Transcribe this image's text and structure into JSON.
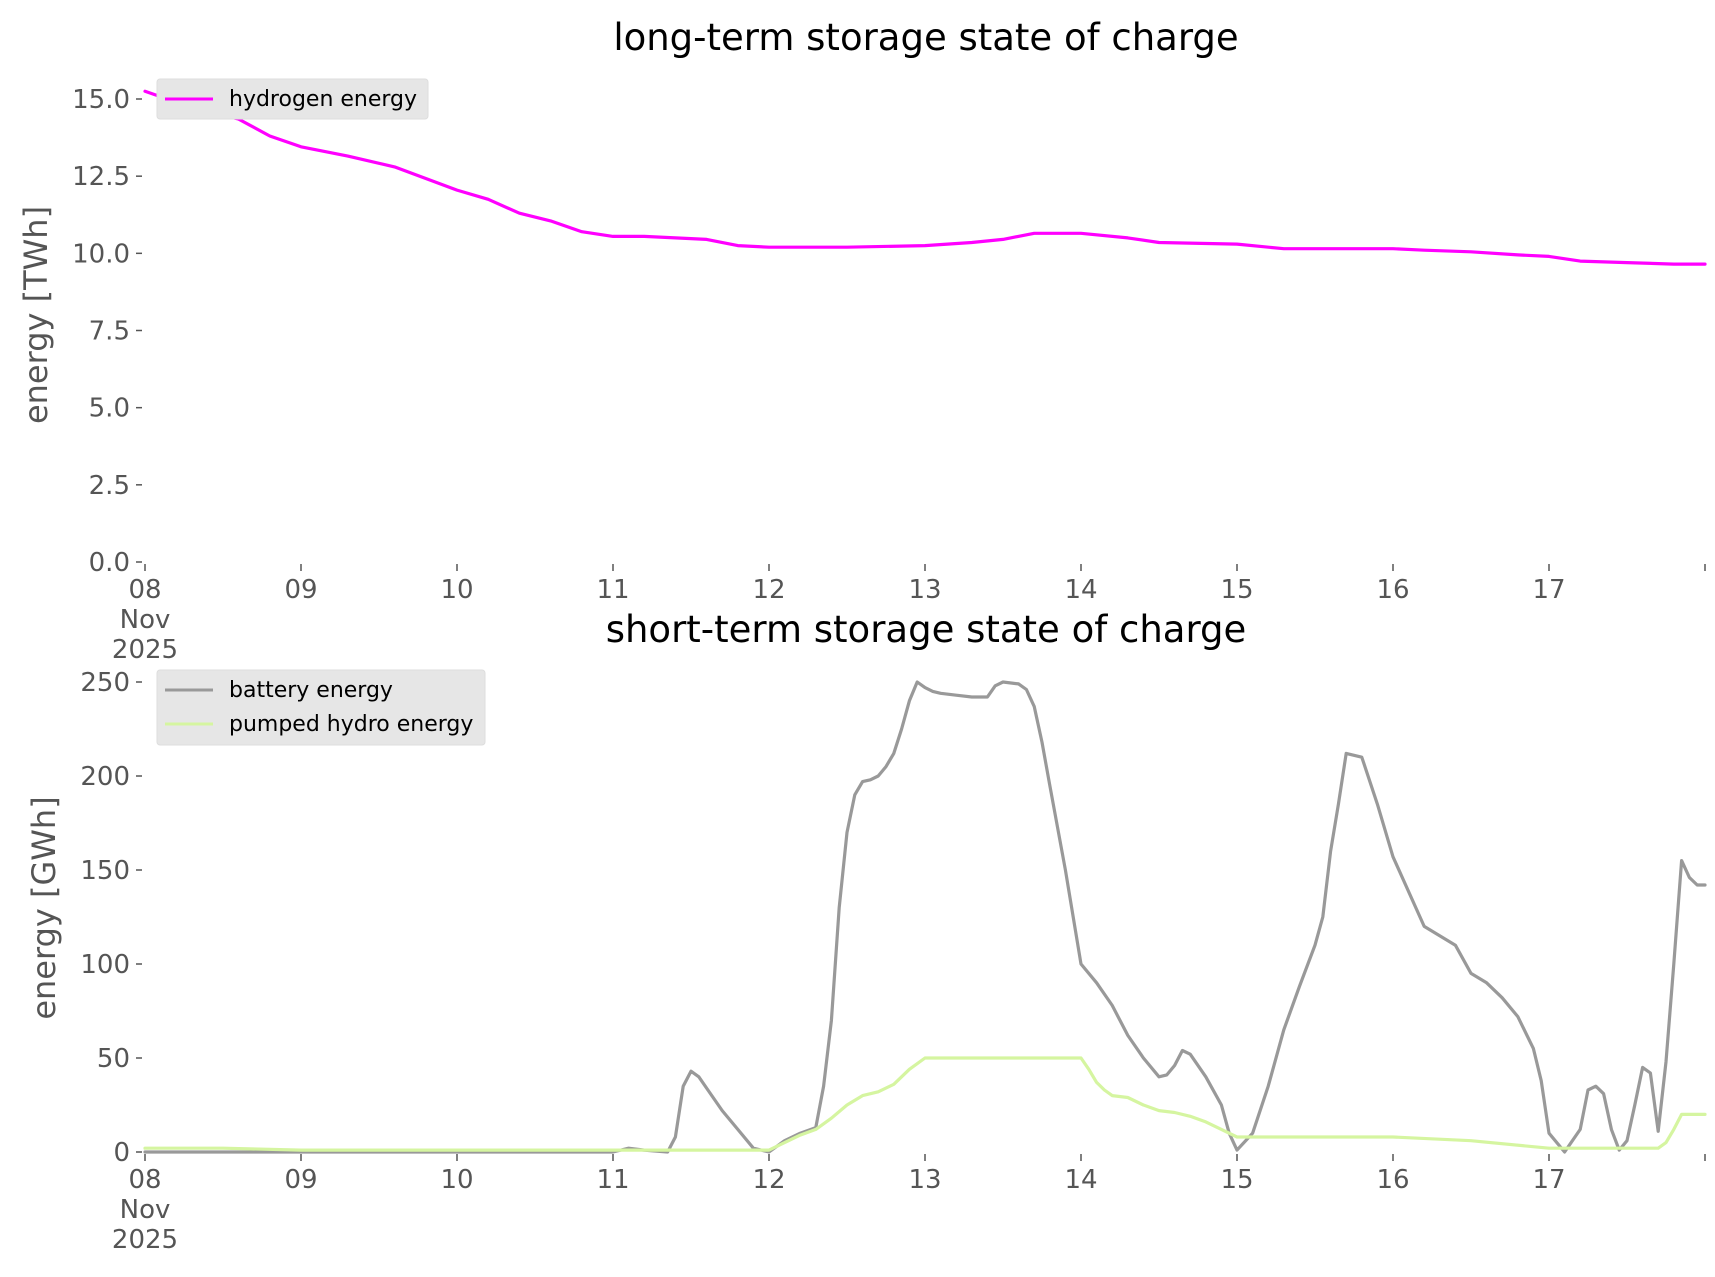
{
  "chart_data": [
    {
      "type": "line",
      "title": "long-term storage state of charge",
      "xlabel": "",
      "ylabel": "energy [TWh]",
      "ylim": [
        0,
        15.3
      ],
      "yticks": [
        0.0,
        2.5,
        5.0,
        7.5,
        10.0,
        12.5,
        15.0
      ],
      "ytick_labels": [
        "0.0",
        "2.5",
        "5.0",
        "7.5",
        "10.0",
        "12.5",
        "15.0"
      ],
      "xlim": [
        0,
        10
      ],
      "xtick_labels": [
        "08\nNov\n2025",
        "09",
        "10",
        "11",
        "12",
        "13",
        "14",
        "15",
        "16",
        "17"
      ],
      "grid": false,
      "legend_position": "top-left",
      "series": [
        {
          "name": "hydrogen energy",
          "color": "#ff00ff",
          "x": [
            0,
            0.2,
            0.4,
            0.6,
            0.8,
            1.0,
            1.3,
            1.6,
            2.0,
            2.2,
            2.4,
            2.6,
            2.8,
            3.0,
            3.2,
            3.4,
            3.6,
            3.8,
            4.0,
            4.5,
            5.0,
            5.3,
            5.5,
            5.7,
            6.0,
            6.3,
            6.5,
            7.0,
            7.3,
            7.6,
            8.0,
            8.2,
            8.5,
            8.8,
            9.0,
            9.2,
            9.5,
            9.8,
            10.0
          ],
          "y": [
            15.25,
            14.9,
            14.6,
            14.35,
            13.8,
            13.45,
            13.15,
            12.8,
            12.05,
            11.75,
            11.3,
            11.05,
            10.7,
            10.55,
            10.55,
            10.5,
            10.45,
            10.25,
            10.2,
            10.2,
            10.25,
            10.35,
            10.45,
            10.65,
            10.65,
            10.5,
            10.35,
            10.3,
            10.15,
            10.15,
            10.15,
            10.1,
            10.05,
            9.95,
            9.9,
            9.75,
            9.7,
            9.65,
            9.65
          ]
        }
      ]
    },
    {
      "type": "line",
      "title": "short-term storage state of charge",
      "xlabel": "",
      "ylabel": "energy [GWh]",
      "ylim": [
        0,
        251
      ],
      "yticks": [
        0,
        50,
        100,
        150,
        200,
        250
      ],
      "ytick_labels": [
        "0",
        "50",
        "100",
        "150",
        "200",
        "250"
      ],
      "xlim": [
        0,
        10
      ],
      "xtick_labels": [
        "08\nNov\n2025",
        "09",
        "10",
        "11",
        "12",
        "13",
        "14",
        "15",
        "16",
        "17"
      ],
      "grid": false,
      "legend_position": "top-left",
      "series": [
        {
          "name": "battery energy",
          "color": "#999999",
          "x": [
            0,
            0.5,
            1.0,
            2.0,
            3.0,
            3.1,
            3.2,
            3.35,
            3.4,
            3.45,
            3.5,
            3.55,
            3.6,
            3.7,
            3.8,
            3.9,
            4.0,
            4.1,
            4.2,
            4.3,
            4.35,
            4.4,
            4.45,
            4.5,
            4.55,
            4.6,
            4.65,
            4.7,
            4.75,
            4.8,
            4.85,
            4.9,
            4.95,
            5.0,
            5.05,
            5.1,
            5.2,
            5.3,
            5.4,
            5.45,
            5.5,
            5.6,
            5.65,
            5.7,
            5.75,
            5.8,
            5.9,
            6.0,
            6.1,
            6.2,
            6.3,
            6.4,
            6.5,
            6.55,
            6.6,
            6.65,
            6.7,
            6.8,
            6.9,
            6.95,
            7.0,
            7.1,
            7.2,
            7.3,
            7.4,
            7.5,
            7.55,
            7.6,
            7.65,
            7.7,
            7.8,
            7.9,
            8.0,
            8.2,
            8.4,
            8.5,
            8.6,
            8.7,
            8.8,
            8.9,
            8.95,
            9.0,
            9.1,
            9.2,
            9.25,
            9.3,
            9.35,
            9.4,
            9.45,
            9.5,
            9.55,
            9.6,
            9.65,
            9.7,
            9.75,
            9.8,
            9.85,
            9.9,
            9.95,
            10.0
          ],
          "y": [
            0,
            0,
            0,
            0,
            0,
            2,
            1,
            0,
            8,
            35,
            43,
            40,
            34,
            22,
            12,
            2,
            0,
            6,
            10,
            13,
            35,
            70,
            130,
            170,
            190,
            197,
            198,
            200,
            205,
            212,
            225,
            240,
            250,
            247,
            245,
            244,
            243,
            242,
            242,
            248,
            250,
            249,
            246,
            237,
            218,
            195,
            150,
            100,
            90,
            78,
            62,
            50,
            40,
            41,
            46,
            54,
            52,
            40,
            25,
            10,
            1,
            10,
            35,
            65,
            88,
            110,
            125,
            160,
            185,
            212,
            210,
            185,
            157,
            120,
            110,
            95,
            90,
            82,
            72,
            55,
            38,
            10,
            0,
            12,
            33,
            35,
            31,
            12,
            1,
            6,
            25,
            45,
            42,
            11,
            48,
            100,
            155,
            146,
            142,
            142
          ]
        },
        {
          "name": "pumped hydro energy",
          "color": "#d5f5a0",
          "x": [
            0,
            0.5,
            1.0,
            2.0,
            3.0,
            3.5,
            4.0,
            4.1,
            4.2,
            4.3,
            4.4,
            4.5,
            4.6,
            4.7,
            4.8,
            4.9,
            5.0,
            5.5,
            6.0,
            6.05,
            6.1,
            6.15,
            6.2,
            6.3,
            6.4,
            6.5,
            6.6,
            6.7,
            6.8,
            6.9,
            7.0,
            7.5,
            8.0,
            8.5,
            9.0,
            9.5,
            9.7,
            9.75,
            9.8,
            9.85,
            10.0
          ],
          "y": [
            2,
            2,
            1,
            1,
            1,
            1,
            1,
            5,
            9,
            12,
            18,
            25,
            30,
            32,
            36,
            44,
            50,
            50,
            50,
            44,
            37,
            33,
            30,
            29,
            25,
            22,
            21,
            19,
            16,
            12,
            8,
            8,
            8,
            6,
            2,
            2,
            2,
            5,
            12,
            20,
            20
          ]
        }
      ]
    }
  ]
}
